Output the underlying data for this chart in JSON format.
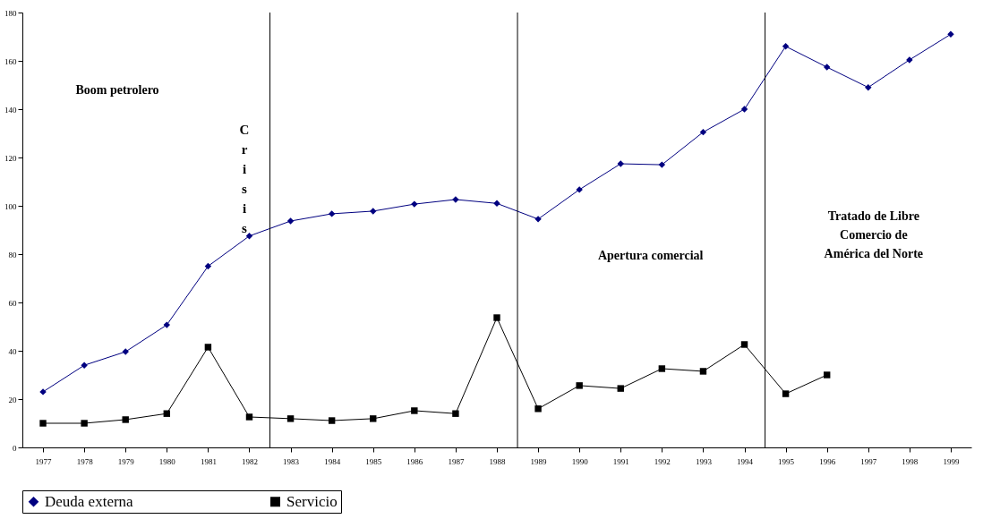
{
  "chart_data": {
    "type": "line",
    "x": [
      1977,
      1978,
      1979,
      1980,
      1981,
      1982,
      1983,
      1984,
      1985,
      1986,
      1987,
      1988,
      1989,
      1990,
      1991,
      1992,
      1993,
      1994,
      1995,
      1996,
      1997,
      1998,
      1999
    ],
    "series": [
      {
        "name": "Deuda externa",
        "color": "#000080",
        "marker": "diamond",
        "values": [
          23,
          34,
          39.6,
          50.7,
          75,
          87.5,
          93.7,
          96.7,
          97.8,
          100.7,
          102.6,
          101,
          94.5,
          106.7,
          117.4,
          117,
          130.5,
          140,
          166,
          157.4,
          149,
          160.4,
          171
        ]
      },
      {
        "name": "Servicio",
        "color": "#000000",
        "marker": "square",
        "values": [
          10,
          10,
          11.5,
          14,
          41.5,
          12.6,
          11.9,
          11.1,
          11.9,
          15.2,
          14,
          53.7,
          16,
          25.6,
          24.4,
          32.6,
          31.5,
          42.6,
          22.2,
          30,
          null,
          null,
          null
        ]
      }
    ],
    "xlim": [
      1976.5,
      1999.5
    ],
    "xticks": [
      1977,
      1978,
      1979,
      1980,
      1981,
      1982,
      1983,
      1984,
      1985,
      1986,
      1987,
      1988,
      1989,
      1990,
      1991,
      1992,
      1993,
      1994,
      1995,
      1996,
      1997,
      1998,
      1999
    ],
    "ylim": [
      0,
      180
    ],
    "yticks": [
      0,
      20,
      40,
      60,
      80,
      100,
      120,
      140,
      160,
      180
    ],
    "ref_lines": [
      {
        "axis": "x",
        "value": 1982.5,
        "color": "#000000"
      },
      {
        "axis": "x",
        "value": 1988.5,
        "color": "#000000"
      },
      {
        "axis": "x",
        "value": 1994.5,
        "color": "#000000"
      }
    ],
    "annotations": [
      "Boom petrolero",
      "Crisis",
      "Apertura comercial",
      "Tratado de Libre\nComercio de\nAmérica del Norte"
    ],
    "grid": false,
    "legend": "bottom"
  }
}
